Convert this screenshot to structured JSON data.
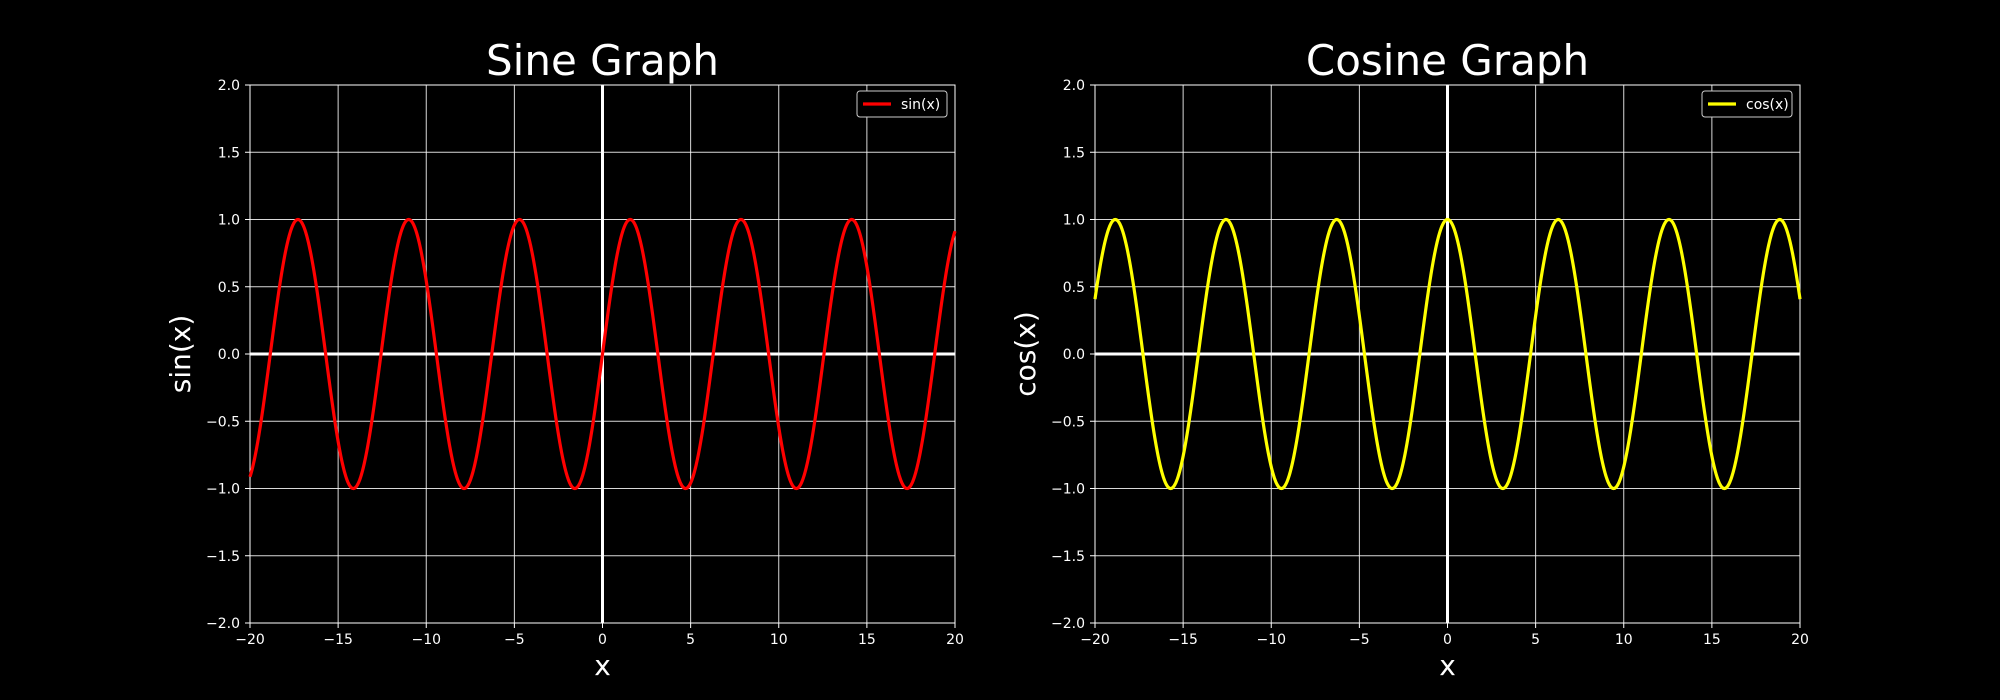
{
  "chart_data": [
    {
      "type": "line",
      "title": "Sine Graph",
      "xlabel": "x",
      "ylabel": "sin(x)",
      "xlim": [
        -20,
        20
      ],
      "ylim": [
        -2.0,
        2.0
      ],
      "xticks": [
        -20,
        -15,
        -10,
        -5,
        0,
        5,
        10,
        15,
        20
      ],
      "yticks": [
        "2.0",
        "1.5",
        "1.0",
        "0.5",
        "0.0",
        "-0.5",
        "-1.0",
        "-1.5",
        "-2.0"
      ],
      "grid": true,
      "legend_position": "top-right",
      "series": [
        {
          "name": "sin(x)",
          "function": "sin",
          "color": "#ff0000",
          "x": [
            -20,
            -17.28,
            -14.14,
            -11.0,
            -7.85,
            -4.71,
            -1.57,
            0,
            1.57,
            4.71,
            7.85,
            11.0,
            14.14,
            17.28,
            20
          ],
          "y": [
            -0.91,
            1.0,
            -1.0,
            1.0,
            -1.0,
            1.0,
            -1.0,
            0.0,
            1.0,
            -1.0,
            1.0,
            -1.0,
            1.0,
            -1.0,
            0.91
          ]
        }
      ]
    },
    {
      "type": "line",
      "title": "Cosine Graph",
      "xlabel": "x",
      "ylabel": "cos(x)",
      "xlim": [
        -20,
        20
      ],
      "ylim": [
        -2.0,
        2.0
      ],
      "xticks": [
        -20,
        -15,
        -10,
        -5,
        0,
        5,
        10,
        15,
        20
      ],
      "yticks": [
        "2.0",
        "1.5",
        "1.0",
        "0.5",
        "0.0",
        "-0.5",
        "-1.0",
        "-1.5",
        "-2.0"
      ],
      "grid": true,
      "legend_position": "top-right",
      "series": [
        {
          "name": "cos(x)",
          "function": "cos",
          "color": "#ffff00",
          "x": [
            -20,
            -18.85,
            -15.71,
            -12.57,
            -9.42,
            -6.28,
            -3.14,
            0,
            3.14,
            6.28,
            9.42,
            12.57,
            15.71,
            18.85,
            20
          ],
          "y": [
            0.41,
            1.0,
            -1.0,
            1.0,
            -1.0,
            1.0,
            -1.0,
            1.0,
            -1.0,
            1.0,
            -1.0,
            1.0,
            -1.0,
            1.0,
            0.41
          ]
        }
      ]
    }
  ]
}
